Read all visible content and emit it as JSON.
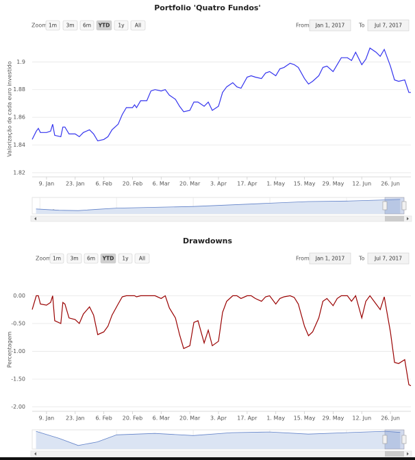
{
  "chart_data": [
    {
      "type": "line",
      "title": "Portfolio 'Quatro Fundos'",
      "y_label": "Valorização de cada euro investido",
      "range_selector": {
        "zoom": "Zoom",
        "buttons": [
          "1m",
          "3m",
          "6m",
          "YTD",
          "1y",
          "All"
        ],
        "selected": 3,
        "from_label": "From",
        "from": "Jan 1, 2017",
        "to_label": "To",
        "to": "Jul 7, 2017"
      },
      "x": [
        "2017-01-02",
        "2017-01-04",
        "2017-01-05",
        "2017-01-06",
        "2017-01-09",
        "2017-01-11",
        "2017-01-12",
        "2017-01-13",
        "2017-01-16",
        "2017-01-17",
        "2017-01-18",
        "2017-01-20",
        "2017-01-23",
        "2017-01-25",
        "2017-01-27",
        "2017-01-30",
        "2017-02-01",
        "2017-02-03",
        "2017-02-06",
        "2017-02-08",
        "2017-02-10",
        "2017-02-13",
        "2017-02-15",
        "2017-02-17",
        "2017-02-20",
        "2017-02-21",
        "2017-02-22",
        "2017-02-24",
        "2017-02-27",
        "2017-03-01",
        "2017-03-03",
        "2017-03-06",
        "2017-03-08",
        "2017-03-10",
        "2017-03-13",
        "2017-03-15",
        "2017-03-17",
        "2017-03-20",
        "2017-03-22",
        "2017-03-24",
        "2017-03-27",
        "2017-03-29",
        "2017-03-31",
        "2017-04-03",
        "2017-04-05",
        "2017-04-07",
        "2017-04-10",
        "2017-04-12",
        "2017-04-14",
        "2017-04-17",
        "2017-04-19",
        "2017-04-21",
        "2017-04-24",
        "2017-04-26",
        "2017-04-28",
        "2017-05-01",
        "2017-05-03",
        "2017-05-05",
        "2017-05-08",
        "2017-05-10",
        "2017-05-12",
        "2017-05-15",
        "2017-05-17",
        "2017-05-19",
        "2017-05-22",
        "2017-05-24",
        "2017-05-26",
        "2017-05-29",
        "2017-05-31",
        "2017-06-02",
        "2017-06-05",
        "2017-06-07",
        "2017-06-09",
        "2017-06-12",
        "2017-06-14",
        "2017-06-16",
        "2017-06-19",
        "2017-06-21",
        "2017-06-23",
        "2017-06-26",
        "2017-06-28",
        "2017-06-30",
        "2017-07-03",
        "2017-07-05",
        "2017-07-06"
      ],
      "series": [
        {
          "color": "#3333ee",
          "values": [
            1.844,
            1.85,
            1.852,
            1.849,
            1.849,
            1.85,
            1.855,
            1.847,
            1.846,
            1.853,
            1.853,
            1.848,
            1.848,
            1.846,
            1.849,
            1.851,
            1.848,
            1.843,
            1.844,
            1.846,
            1.851,
            1.855,
            1.862,
            1.867,
            1.867,
            1.869,
            1.867,
            1.872,
            1.872,
            1.879,
            1.88,
            1.879,
            1.88,
            1.876,
            1.873,
            1.868,
            1.864,
            1.865,
            1.871,
            1.871,
            1.868,
            1.871,
            1.865,
            1.868,
            1.878,
            1.882,
            1.885,
            1.882,
            1.881,
            1.889,
            1.89,
            1.889,
            1.888,
            1.892,
            1.893,
            1.89,
            1.895,
            1.896,
            1.899,
            1.898,
            1.896,
            1.888,
            1.884,
            1.886,
            1.89,
            1.896,
            1.897,
            1.893,
            1.898,
            1.903,
            1.903,
            1.901,
            1.907,
            1.898,
            1.902,
            1.91,
            1.907,
            1.904,
            1.909,
            1.897,
            1.887,
            1.886,
            1.887,
            1.878,
            1.878
          ]
        }
      ],
      "xlim": [
        "2017-01-02",
        "2017-07-06"
      ],
      "xticks": [
        {
          "value": "2017-01-09",
          "label": "9. Jan"
        },
        {
          "value": "2017-01-23",
          "label": "23. Jan"
        },
        {
          "value": "2017-02-06",
          "label": "6. Feb"
        },
        {
          "value": "2017-02-20",
          "label": "20. Feb"
        },
        {
          "value": "2017-03-06",
          "label": "6. Mar"
        },
        {
          "value": "2017-03-20",
          "label": "20. Mar"
        },
        {
          "value": "2017-04-03",
          "label": "3. Apr"
        },
        {
          "value": "2017-04-17",
          "label": "17. Apr"
        },
        {
          "value": "2017-05-01",
          "label": "1. May"
        },
        {
          "value": "2017-05-15",
          "label": "15. May"
        },
        {
          "value": "2017-05-29",
          "label": "29. May"
        },
        {
          "value": "2017-06-12",
          "label": "12. Jun"
        },
        {
          "value": "2017-06-26",
          "label": "26. Jun"
        }
      ],
      "ylim": [
        1.817,
        1.915
      ],
      "yticks": [
        1.82,
        1.84,
        1.86,
        1.88,
        1.9
      ],
      "grid": true,
      "navigator": {
        "x": [
          2007.9,
          2008.5,
          2009,
          2009.5,
          2010,
          2011,
          2012,
          2013,
          2014,
          2015,
          2016,
          2017,
          2017.4
        ],
        "values": [
          1.3,
          1.22,
          1.2,
          1.28,
          1.35,
          1.4,
          1.45,
          1.55,
          1.65,
          1.75,
          1.78,
          1.85,
          1.88
        ],
        "xlim": [
          2007.8,
          2017.5
        ],
        "ylim": [
          1.0,
          2.0
        ],
        "xticks": [
          2008,
          2010,
          2012,
          2014,
          2016
        ]
      }
    },
    {
      "type": "line",
      "title": "Drawdowns",
      "y_label": "Percentagem",
      "range_selector": {
        "zoom": "Zoom",
        "buttons": [
          "1m",
          "3m",
          "6m",
          "YTD",
          "1y",
          "All"
        ],
        "selected": 3,
        "from_label": "From",
        "from": "Jan 1, 2017",
        "to_label": "To",
        "to": "Jul 7, 2017"
      },
      "x": [
        "2017-01-02",
        "2017-01-04",
        "2017-01-05",
        "2017-01-06",
        "2017-01-09",
        "2017-01-11",
        "2017-01-12",
        "2017-01-13",
        "2017-01-16",
        "2017-01-17",
        "2017-01-18",
        "2017-01-20",
        "2017-01-23",
        "2017-01-25",
        "2017-01-27",
        "2017-01-30",
        "2017-02-01",
        "2017-02-03",
        "2017-02-06",
        "2017-02-08",
        "2017-02-10",
        "2017-02-13",
        "2017-02-15",
        "2017-02-17",
        "2017-02-20",
        "2017-02-21",
        "2017-02-22",
        "2017-02-24",
        "2017-02-27",
        "2017-03-01",
        "2017-03-03",
        "2017-03-06",
        "2017-03-08",
        "2017-03-10",
        "2017-03-13",
        "2017-03-15",
        "2017-03-17",
        "2017-03-20",
        "2017-03-22",
        "2017-03-24",
        "2017-03-27",
        "2017-03-29",
        "2017-03-31",
        "2017-04-03",
        "2017-04-05",
        "2017-04-07",
        "2017-04-10",
        "2017-04-12",
        "2017-04-14",
        "2017-04-17",
        "2017-04-19",
        "2017-04-21",
        "2017-04-24",
        "2017-04-26",
        "2017-04-28",
        "2017-05-01",
        "2017-05-03",
        "2017-05-05",
        "2017-05-08",
        "2017-05-10",
        "2017-05-12",
        "2017-05-15",
        "2017-05-17",
        "2017-05-19",
        "2017-05-22",
        "2017-05-24",
        "2017-05-26",
        "2017-05-29",
        "2017-05-31",
        "2017-06-02",
        "2017-06-05",
        "2017-06-07",
        "2017-06-09",
        "2017-06-12",
        "2017-06-14",
        "2017-06-16",
        "2017-06-19",
        "2017-06-21",
        "2017-06-23",
        "2017-06-26",
        "2017-06-28",
        "2017-06-30",
        "2017-07-03",
        "2017-07-05",
        "2017-07-06"
      ],
      "series": [
        {
          "color": "#990000",
          "values": [
            -0.25,
            0,
            0,
            -0.15,
            -0.17,
            -0.12,
            0,
            -0.45,
            -0.5,
            -0.12,
            -0.15,
            -0.4,
            -0.43,
            -0.5,
            -0.33,
            -0.2,
            -0.35,
            -0.7,
            -0.65,
            -0.55,
            -0.35,
            -0.15,
            -0.02,
            0,
            0,
            0,
            -0.02,
            0,
            0,
            0,
            0,
            -0.05,
            0,
            -0.22,
            -0.4,
            -0.7,
            -0.95,
            -0.9,
            -0.48,
            -0.45,
            -0.85,
            -0.62,
            -0.9,
            -0.82,
            -0.3,
            -0.1,
            0,
            0,
            -0.05,
            0,
            0,
            -0.05,
            -0.1,
            -0.02,
            0,
            -0.15,
            -0.05,
            -0.02,
            0,
            -0.03,
            -0.15,
            -0.55,
            -0.72,
            -0.65,
            -0.4,
            -0.1,
            -0.05,
            -0.18,
            -0.05,
            0,
            0,
            -0.1,
            0,
            -0.4,
            -0.1,
            0,
            -0.15,
            -0.25,
            -0.02,
            -0.65,
            -1.2,
            -1.22,
            -1.15,
            -1.6,
            -1.62
          ]
        }
      ],
      "xlim": [
        "2017-01-02",
        "2017-07-06"
      ],
      "xticks": [
        {
          "value": "2017-01-09",
          "label": "9. Jan"
        },
        {
          "value": "2017-01-23",
          "label": "23. Jan"
        },
        {
          "value": "2017-02-06",
          "label": "6. Feb"
        },
        {
          "value": "2017-02-20",
          "label": "20. Feb"
        },
        {
          "value": "2017-03-06",
          "label": "6. Mar"
        },
        {
          "value": "2017-03-20",
          "label": "20. Mar"
        },
        {
          "value": "2017-04-03",
          "label": "3. Apr"
        },
        {
          "value": "2017-04-17",
          "label": "17. Apr"
        },
        {
          "value": "2017-05-01",
          "label": "1. May"
        },
        {
          "value": "2017-05-15",
          "label": "15. May"
        },
        {
          "value": "2017-05-29",
          "label": "29. May"
        },
        {
          "value": "2017-06-12",
          "label": "12. Jun"
        },
        {
          "value": "2017-06-26",
          "label": "26. Jun"
        }
      ],
      "ylim": [
        -2.08,
        0.14
      ],
      "yticks": [
        {
          "value": 0,
          "label": "0.00"
        },
        {
          "value": -0.5,
          "label": "-0.50"
        },
        {
          "value": -1,
          "label": "-1.00"
        },
        {
          "value": -1.5,
          "label": "-1.50"
        },
        {
          "value": -2,
          "label": "-2.00"
        }
      ],
      "grid": true,
      "navigator": {
        "x": [
          2007.9,
          2008.5,
          2009,
          2009.5,
          2010,
          2011,
          2012,
          2013,
          2014,
          2015,
          2016,
          2017,
          2017.4
        ],
        "values": [
          0,
          -10,
          -20,
          -15,
          -5,
          -3,
          -6,
          -2,
          -1,
          -4,
          -2,
          0,
          -1.6
        ],
        "xlim": [
          2007.8,
          2017.5
        ],
        "ylim": [
          -25,
          2
        ],
        "xticks": [
          2008,
          2010,
          2012,
          2014,
          2016
        ]
      }
    }
  ]
}
